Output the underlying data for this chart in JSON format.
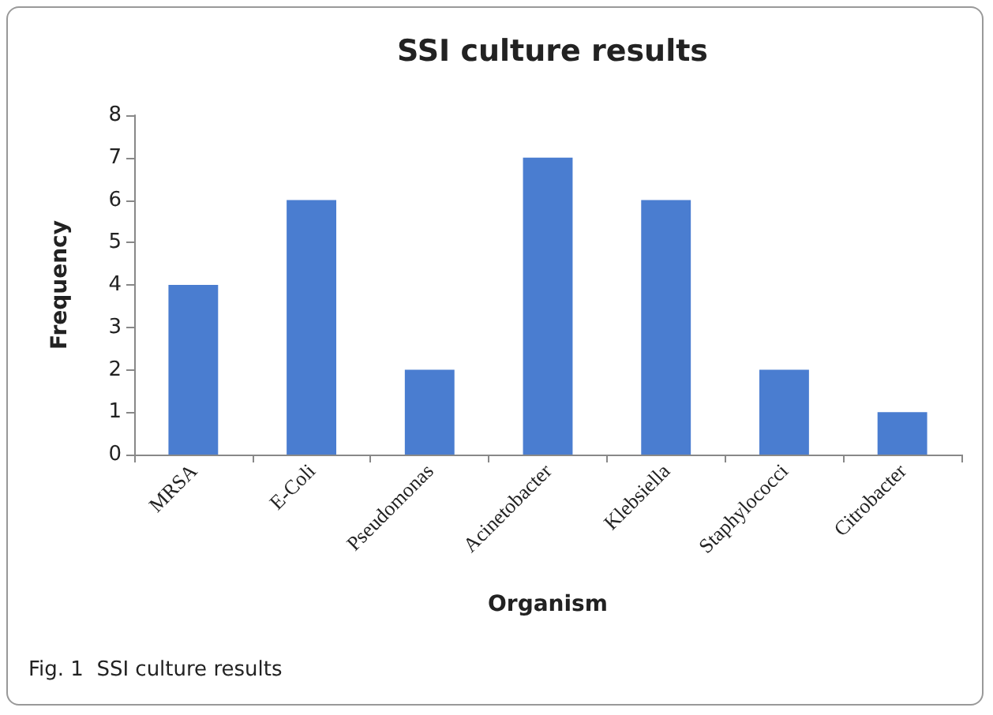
{
  "chart_data": {
    "type": "bar",
    "title": "SSI culture results",
    "xlabel": "Organism",
    "ylabel": "Frequency",
    "categories": [
      "MRSA",
      "E-Coli",
      "Pseudomonas",
      "Acinetobacter",
      "Klebsiella",
      "Staphylococci",
      "Citrobacter"
    ],
    "values": [
      4,
      6,
      2,
      7,
      6,
      2,
      1
    ],
    "color": "#4a7dd0",
    "ylim": [
      0,
      8
    ],
    "yticks": [
      0,
      1,
      2,
      3,
      4,
      5,
      6,
      7,
      8
    ],
    "grid": false,
    "annotations": [
      "Fig. 1  SSI culture results"
    ]
  }
}
